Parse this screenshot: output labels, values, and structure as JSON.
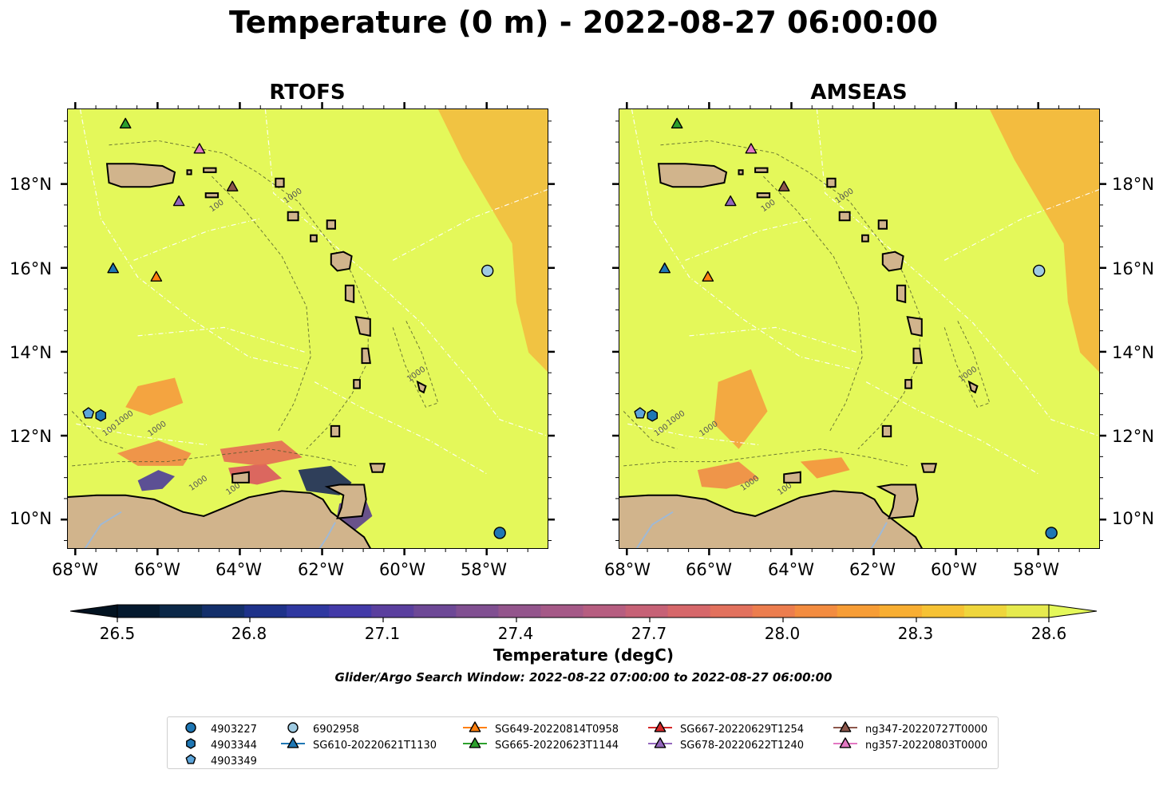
{
  "title": "Temperature (0 m) - 2022-08-27 06:00:00",
  "panels": [
    {
      "title": "RTOFS"
    },
    {
      "title": "AMSEAS"
    }
  ],
  "axes": {
    "lat_labels": [
      "18°N",
      "16°N",
      "14°N",
      "12°N",
      "10°N"
    ],
    "lon_labels": [
      "68°W",
      "66°W",
      "64°W",
      "62°W",
      "60°W",
      "58°W"
    ]
  },
  "colorbar": {
    "label": "Temperature (degC)",
    "ticks": [
      "26.5",
      "26.8",
      "27.1",
      "27.4",
      "27.7",
      "28.0",
      "28.3",
      "28.6"
    ],
    "subtitle": "Glider/Argo Search Window: 2022-08-22 07:00:00 to 2022-08-27 06:00:00"
  },
  "contour_labels": [
    "100",
    "1000"
  ],
  "legend": {
    "items": [
      {
        "label": "4903227",
        "marker": "circle",
        "color": "#1f77b4"
      },
      {
        "label": "4903344",
        "marker": "hexagon",
        "color": "#1f77b4"
      },
      {
        "label": "4903349",
        "marker": "pentagon",
        "color": "#5da5da"
      },
      {
        "label": "6902958",
        "marker": "circle",
        "color": "#9ecae1"
      },
      {
        "label": "SG610-20220621T1130",
        "marker": "triangle",
        "color": "#1f77b4"
      },
      {
        "label": "SG649-20220814T0958",
        "marker": "triangle",
        "color": "#ff7f0e"
      },
      {
        "label": "SG665-20220623T1144",
        "marker": "triangle",
        "color": "#2ca02c"
      },
      {
        "label": "SG667-20220629T1254",
        "marker": "triangle",
        "color": "#d62728"
      },
      {
        "label": "SG678-20220622T1240",
        "marker": "triangle",
        "color": "#9467bd"
      },
      {
        "label": "ng347-20220727T0000",
        "marker": "triangle",
        "color": "#8c564b"
      },
      {
        "label": "ng357-20220803T0000",
        "marker": "triangle",
        "color": "#e377c2"
      }
    ]
  },
  "chart_data": {
    "type": "heatmap",
    "title": "Temperature (0 m) - 2022-08-27 06:00:00",
    "subplots": [
      "RTOFS",
      "AMSEAS"
    ],
    "xlabel": "",
    "ylabel": "",
    "xlim": [
      -68.2,
      -56.5
    ],
    "ylim": [
      9.3,
      19.8
    ],
    "x_ticks": [
      -68,
      -66,
      -64,
      -62,
      -60,
      -58
    ],
    "y_ticks": [
      10,
      12,
      14,
      16,
      18
    ],
    "colorbar": {
      "label": "Temperature (degC)",
      "range": [
        26.5,
        28.6
      ],
      "colormap": "thermal",
      "extend": "both"
    },
    "background_value": 28.6,
    "observations": [
      {
        "name": "4903227",
        "lon": -57.7,
        "lat": 9.7,
        "marker": "circle",
        "color": "#1f77b4"
      },
      {
        "name": "4903344",
        "lon": -67.4,
        "lat": 12.5,
        "marker": "hexagon",
        "color": "#1f77b4"
      },
      {
        "name": "4903349",
        "lon": -67.7,
        "lat": 12.55,
        "marker": "pentagon",
        "color": "#5da5da"
      },
      {
        "name": "6902958",
        "lon": -58.0,
        "lat": 15.95,
        "marker": "circle",
        "color": "#9ecae1"
      },
      {
        "name": "SG610-20220621T1130",
        "lon": -67.1,
        "lat": 16.0,
        "marker": "triangle",
        "color": "#1f77b4"
      },
      {
        "name": "SG649-20220814T0958",
        "lon": -66.05,
        "lat": 15.8,
        "marker": "triangle",
        "color": "#ff7f0e"
      },
      {
        "name": "SG665-20220623T1144",
        "lon": -66.8,
        "lat": 19.45,
        "marker": "triangle",
        "color": "#2ca02c"
      },
      {
        "name": "SG678-20220622T1240",
        "lon": -65.5,
        "lat": 17.6,
        "marker": "triangle",
        "color": "#9467bd"
      },
      {
        "name": "ng347-20220727T0000",
        "lon": -64.2,
        "lat": 17.95,
        "marker": "triangle",
        "color": "#8c564b"
      },
      {
        "name": "ng357-20220803T0000",
        "lon": -65.0,
        "lat": 18.85,
        "marker": "triangle",
        "color": "#e377c2"
      }
    ]
  },
  "colors": {
    "ocean": "#e4f85a",
    "land": "#d1b48c",
    "warm": "#f6b23b",
    "river": "#9fb9d6"
  }
}
